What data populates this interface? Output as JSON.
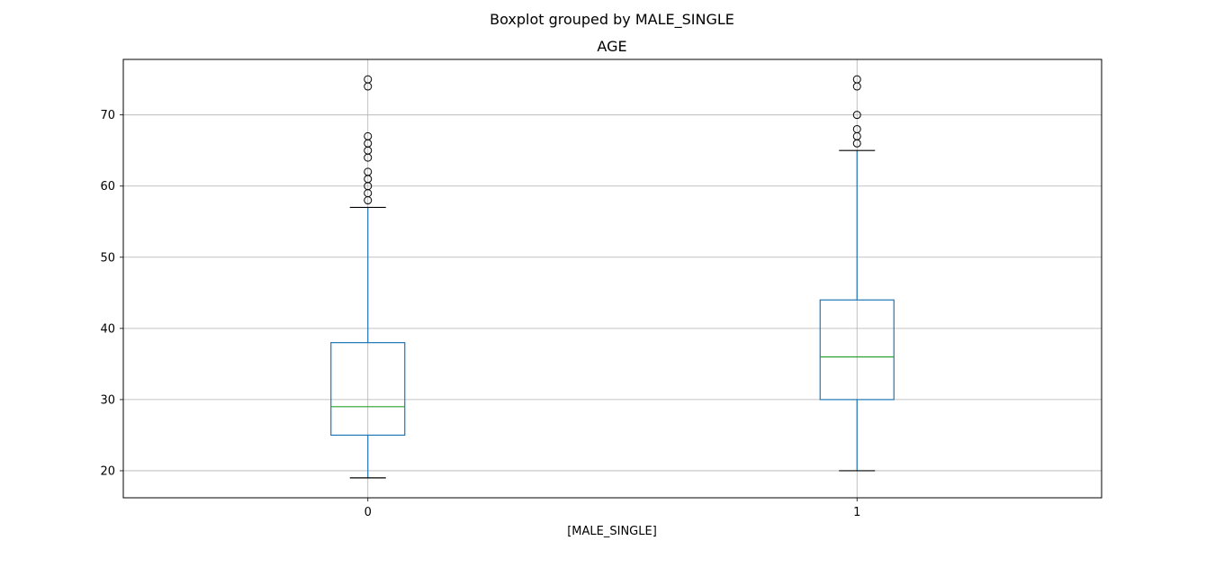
{
  "chart_data": {
    "type": "box",
    "suptitle": "Boxplot grouped by MALE_SINGLE",
    "title": "AGE",
    "xlabel": "[MALE_SINGLE]",
    "ylabel": "",
    "categories": [
      "0",
      "1"
    ],
    "ylim": [
      16.2,
      77.8
    ],
    "yticks": [
      20,
      30,
      40,
      50,
      60,
      70
    ],
    "grid": true,
    "boxes": [
      {
        "category": "0",
        "whisker_low": 19,
        "q1": 25,
        "median": 29,
        "q3": 38,
        "whisker_high": 57,
        "outliers": [
          58,
          59,
          60,
          61,
          62,
          64,
          65,
          66,
          67,
          74,
          75
        ]
      },
      {
        "category": "1",
        "whisker_low": 20,
        "q1": 30,
        "median": 36,
        "q3": 44,
        "whisker_high": 65,
        "outliers": [
          66,
          67,
          68,
          70,
          74,
          75
        ]
      }
    ],
    "colors": {
      "box": "#1f77b4",
      "median": "#2ca02c",
      "whisker_cap": "#000000",
      "grid": "#b0b0b0",
      "outlier_edge": "#000000"
    }
  }
}
